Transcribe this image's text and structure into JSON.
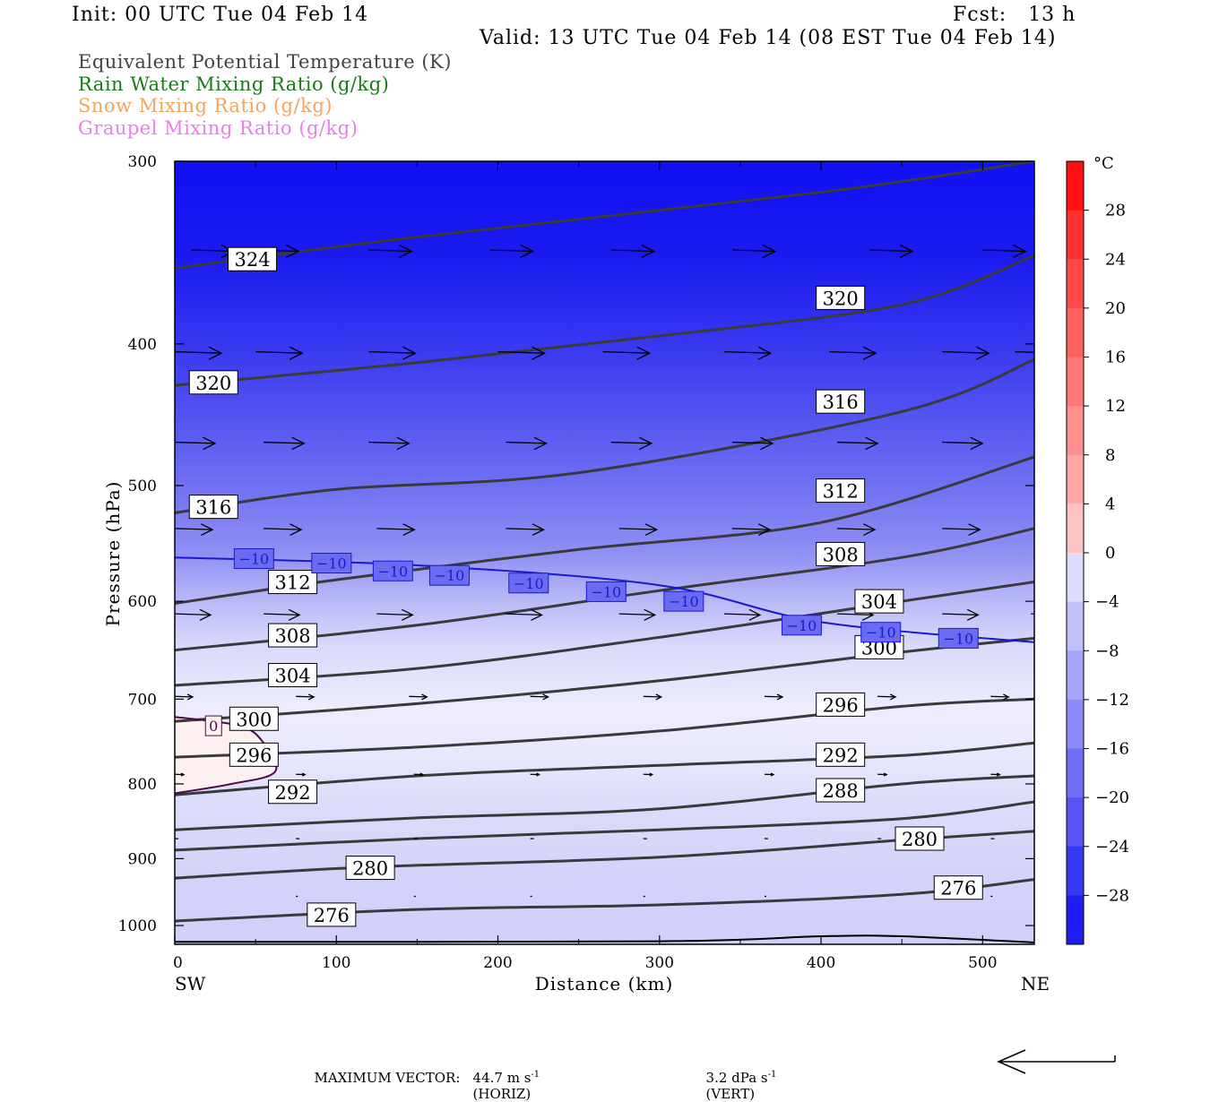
{
  "header": {
    "init": "Init: 00 UTC Tue 04 Feb 14",
    "fcst": "Fcst:   13 h",
    "valid": "Valid: 13 UTC Tue 04 Feb 14 (08 EST Tue 04 Feb 14)"
  },
  "legend": [
    {
      "text": "Equivalent Potential Temperature (K)",
      "color": "#444444"
    },
    {
      "text": "Rain Water Mixing Ratio (g/kg)",
      "color": "#1a7a1a"
    },
    {
      "text": "Snow Mixing Ratio (g/kg)",
      "color": "#f4a460"
    },
    {
      "text": "Graupel Mixing Ratio (g/kg)",
      "color": "#e87ee8"
    }
  ],
  "footer": {
    "max_label": "MAXIMUM VECTOR:",
    "horiz_value": "44.7 m s",
    "horiz_exp": "-1",
    "horiz_tag": "(HORIZ)",
    "vert_value": "3.2 dPa s",
    "vert_exp": "-1",
    "vert_tag": "(VERT)"
  },
  "chart_data": {
    "type": "cross-section",
    "xlabel": "Distance (km)",
    "ylabel": "Pressure (hPa)",
    "x_left_label": "SW",
    "x_right_label": "NE",
    "xlim": [
      0,
      532
    ],
    "ylim": [
      1030,
      300
    ],
    "yscale": "log",
    "xticks": [
      0,
      100,
      200,
      300,
      400,
      500
    ],
    "yticks": [
      300,
      400,
      500,
      600,
      700,
      800,
      900,
      1000
    ],
    "colorbar": {
      "unit": "°C",
      "labels": [
        28,
        24,
        20,
        16,
        12,
        8,
        4,
        0,
        -4,
        -8,
        -12,
        -16,
        -20,
        -24,
        -28
      ],
      "min": -32,
      "max": 32,
      "step": 4
    },
    "theta_e_contours": [
      {
        "value": 324,
        "points": [
          [
            0,
            355
          ],
          [
            150,
            338
          ],
          [
            400,
            315
          ],
          [
            532,
            300
          ]
        ],
        "labels": [
          [
            48,
            350
          ]
        ]
      },
      {
        "value": 320,
        "points": [
          [
            0,
            427
          ],
          [
            150,
            412
          ],
          [
            300,
            395
          ],
          [
            450,
            376
          ],
          [
            532,
            348
          ]
        ],
        "labels": [
          [
            24,
            425
          ],
          [
            412,
            372
          ]
        ]
      },
      {
        "value": 316,
        "points": [
          [
            0,
            522
          ],
          [
            100,
            503
          ],
          [
            250,
            490
          ],
          [
            450,
            445
          ],
          [
            532,
            410
          ]
        ],
        "labels": [
          [
            24,
            517
          ],
          [
            412,
            438
          ]
        ]
      },
      {
        "value": 312,
        "points": [
          [
            0,
            602
          ],
          [
            100,
            580
          ],
          [
            250,
            553
          ],
          [
            400,
            530
          ],
          [
            532,
            478
          ]
        ],
        "labels": [
          [
            73,
            582
          ],
          [
            412,
            504
          ]
        ]
      },
      {
        "value": 308,
        "points": [
          [
            0,
            648
          ],
          [
            150,
            623
          ],
          [
            300,
            590
          ],
          [
            450,
            560
          ],
          [
            532,
            535
          ]
        ],
        "labels": [
          [
            73,
            633
          ],
          [
            412,
            557
          ]
        ]
      },
      {
        "value": 304,
        "points": [
          [
            0,
            685
          ],
          [
            150,
            667
          ],
          [
            300,
            635
          ],
          [
            450,
            600
          ],
          [
            532,
            582
          ]
        ],
        "labels": [
          [
            73,
            674
          ],
          [
            436,
            600
          ]
        ]
      },
      {
        "value": 300,
        "points": [
          [
            0,
            725
          ],
          [
            150,
            705
          ],
          [
            300,
            680
          ],
          [
            450,
            650
          ],
          [
            532,
            636
          ]
        ],
        "labels": [
          [
            49,
            722
          ],
          [
            436,
            645
          ]
        ]
      },
      {
        "value": 296,
        "points": [
          [
            0,
            767
          ],
          [
            150,
            755
          ],
          [
            300,
            736
          ],
          [
            450,
            708
          ],
          [
            532,
            700
          ]
        ],
        "labels": [
          [
            49,
            764
          ],
          [
            412,
            706
          ]
        ]
      },
      {
        "value": 292,
        "points": [
          [
            0,
            814
          ],
          [
            150,
            790
          ],
          [
            300,
            777
          ],
          [
            450,
            765
          ],
          [
            532,
            750
          ]
        ],
        "labels": [
          [
            73,
            810
          ],
          [
            412,
            764
          ]
        ]
      },
      {
        "value": 288,
        "points": [
          [
            0,
            860
          ],
          [
            150,
            844
          ],
          [
            300,
            832
          ],
          [
            450,
            800
          ],
          [
            532,
            790
          ]
        ],
        "labels": [
          [
            412,
            808
          ]
        ]
      },
      {
        "value": 284,
        "points": [
          [
            0,
            888
          ],
          [
            150,
            872
          ],
          [
            300,
            860
          ],
          [
            450,
            845
          ],
          [
            532,
            823
          ]
        ],
        "labels": []
      },
      {
        "value": 280,
        "points": [
          [
            0,
            928
          ],
          [
            120,
            912
          ],
          [
            300,
            898
          ],
          [
            450,
            874
          ],
          [
            532,
            862
          ]
        ],
        "labels": [
          [
            121,
            913
          ],
          [
            461,
            872
          ]
        ]
      },
      {
        "value": 276,
        "points": [
          [
            0,
            993
          ],
          [
            150,
            975
          ],
          [
            300,
            968
          ],
          [
            450,
            952
          ],
          [
            532,
            930
          ]
        ],
        "labels": [
          [
            97,
            983
          ],
          [
            485,
            942
          ]
        ]
      }
    ],
    "isotherm_minus10": {
      "value": -10,
      "points": [
        [
          0,
          560
        ],
        [
          150,
          567
        ],
        [
          300,
          585
        ],
        [
          400,
          620
        ],
        [
          532,
          640
        ]
      ],
      "labels": [
        [
          49,
          561
        ],
        [
          97,
          565
        ],
        [
          135,
          572
        ],
        [
          170,
          576
        ],
        [
          219,
          583
        ],
        [
          267,
          591
        ],
        [
          315,
          600
        ],
        [
          388,
          623
        ],
        [
          437,
          630
        ],
        [
          485,
          636
        ]
      ]
    },
    "isotherm_zero": {
      "value": 0,
      "points": [
        [
          0,
          720
        ],
        [
          40,
          730
        ],
        [
          55,
          750
        ],
        [
          62,
          785
        ],
        [
          35,
          800
        ],
        [
          0,
          812
        ]
      ],
      "labels": [
        [
          24,
          730
        ]
      ]
    },
    "wind_vectors": [
      {
        "p": 345,
        "xs": [
          10,
          50,
          120,
          195,
          270,
          345,
          430,
          500
        ],
        "len": 48
      },
      {
        "p": 405,
        "xs": [
          0,
          50,
          120,
          200,
          265,
          340,
          405,
          475,
          520
        ],
        "len": 52
      },
      {
        "p": 467,
        "xs": [
          0,
          55,
          120,
          205,
          270,
          345,
          410,
          475
        ],
        "len": 45
      },
      {
        "p": 535,
        "xs": [
          0,
          55,
          125,
          205,
          275,
          345,
          410,
          475
        ],
        "len": 42
      },
      {
        "p": 612,
        "xs": [
          0,
          55,
          125,
          205,
          275,
          340,
          410,
          475,
          530
        ],
        "len": 40
      },
      {
        "p": 697,
        "xs": [
          0,
          75,
          145,
          220,
          290,
          365,
          435,
          505
        ],
        "len": 20
      },
      {
        "p": 788,
        "xs": [
          0,
          75,
          148,
          220,
          290,
          365,
          435,
          505
        ],
        "len": 10
      },
      {
        "p": 872,
        "xs": [
          0,
          75,
          148,
          220,
          290,
          365,
          435,
          505
        ],
        "len": 4
      },
      {
        "p": 955,
        "xs": [
          75,
          148,
          220,
          290,
          365,
          505
        ],
        "len": 2
      }
    ],
    "surface_line": {
      "points": [
        [
          0,
          1026
        ],
        [
          300,
          1025
        ],
        [
          400,
          1017
        ],
        [
          450,
          1017
        ],
        [
          532,
          1027
        ]
      ]
    }
  }
}
